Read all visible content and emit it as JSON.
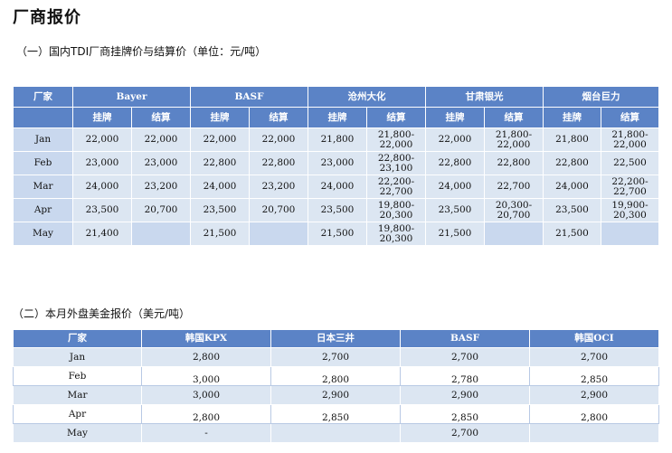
{
  "title": "厂商报价",
  "section1": {
    "heading": "（一）国内TDI厂商挂牌价与结算价（单位：元/吨）",
    "col_header": "厂家",
    "makers": [
      "Bayer",
      "BASF",
      "沧州大化",
      "甘肃银光",
      "烟台巨力"
    ],
    "sub_headers": [
      "挂牌",
      "结算"
    ],
    "rows": [
      {
        "month": "Jan",
        "cells": [
          "22,000",
          "22,000",
          "22,000",
          "22,000",
          "21,800",
          "21,800-\n22,000",
          "22,000",
          "21,800-\n22,000",
          "21,800",
          "21,800-\n22,000"
        ]
      },
      {
        "month": "Feb",
        "cells": [
          "23,000",
          "23,000",
          "22,800",
          "22,800",
          "23,000",
          "22,800-\n23,100",
          "22,800",
          "22,800",
          "22,800",
          "22,500"
        ]
      },
      {
        "month": "Mar",
        "cells": [
          "24,000",
          "23,200",
          "24,000",
          "23,200",
          "24,000",
          "22,200-\n22,700",
          "24,000",
          "22,700",
          "24,000",
          "22,200-\n22,700"
        ]
      },
      {
        "month": "Apr",
        "cells": [
          "23,500",
          "20,700",
          "23,500",
          "20,700",
          "23,500",
          "19,800-\n20,300",
          "23,500",
          "20,300-\n20,700",
          "23,500",
          "19,900-\n20,300"
        ]
      },
      {
        "month": "May",
        "cells": [
          "21,400",
          "",
          "21,500",
          "",
          "21,500",
          "19,800-\n20,300",
          "21,500",
          "",
          "21,500",
          ""
        ]
      }
    ]
  },
  "section2": {
    "heading": "（二）本月外盘美金报价（美元/吨）",
    "headers": [
      "厂家",
      "韩国KPX",
      "日本三井",
      "BASF",
      "韩国OCI"
    ],
    "rows": [
      {
        "month": "Jan",
        "cells": [
          "2,800",
          "2,700",
          "2,700",
          "2,700"
        ]
      },
      {
        "month": "Feb",
        "cells": [
          "3,000",
          "2,800",
          "2,780",
          "2,850"
        ]
      },
      {
        "month": "Mar",
        "cells": [
          "3,000",
          "2,900",
          "2,900",
          "2,900"
        ]
      },
      {
        "month": "Apr",
        "cells": [
          "2,800",
          "2,850",
          "2,850",
          "2,800"
        ]
      },
      {
        "month": "May",
        "cells": [
          "-",
          "",
          "2,700",
          ""
        ]
      }
    ]
  }
}
